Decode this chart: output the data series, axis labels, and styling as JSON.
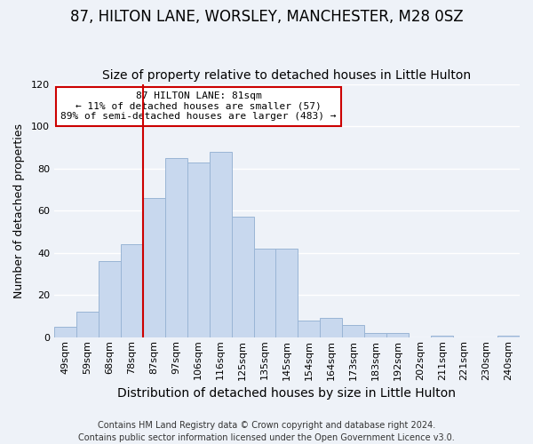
{
  "title": "87, HILTON LANE, WORSLEY, MANCHESTER, M28 0SZ",
  "subtitle": "Size of property relative to detached houses in Little Hulton",
  "xlabel": "Distribution of detached houses by size in Little Hulton",
  "ylabel": "Number of detached properties",
  "bar_labels": [
    "49sqm",
    "59sqm",
    "68sqm",
    "78sqm",
    "87sqm",
    "97sqm",
    "106sqm",
    "116sqm",
    "125sqm",
    "135sqm",
    "145sqm",
    "154sqm",
    "164sqm",
    "173sqm",
    "183sqm",
    "192sqm",
    "202sqm",
    "211sqm",
    "221sqm",
    "230sqm",
    "240sqm"
  ],
  "bar_values": [
    5,
    12,
    36,
    44,
    66,
    85,
    83,
    88,
    57,
    42,
    42,
    8,
    9,
    6,
    2,
    2,
    0,
    1,
    0,
    0,
    1
  ],
  "bar_color": "#c8d8ee",
  "bar_edge_color": "#9ab5d5",
  "vline_color": "#cc0000",
  "ylim": [
    0,
    120
  ],
  "yticks": [
    0,
    20,
    40,
    60,
    80,
    100,
    120
  ],
  "annotation_title": "87 HILTON LANE: 81sqm",
  "annotation_line1": "← 11% of detached houses are smaller (57)",
  "annotation_line2": "89% of semi-detached houses are larger (483) →",
  "footer_line1": "Contains HM Land Registry data © Crown copyright and database right 2024.",
  "footer_line2": "Contains public sector information licensed under the Open Government Licence v3.0.",
  "background_color": "#eef2f8",
  "grid_color": "#ffffff",
  "title_fontsize": 12,
  "subtitle_fontsize": 10,
  "ylabel_fontsize": 9,
  "xlabel_fontsize": 10,
  "tick_fontsize": 8,
  "annotation_fontsize": 8,
  "footer_fontsize": 7
}
